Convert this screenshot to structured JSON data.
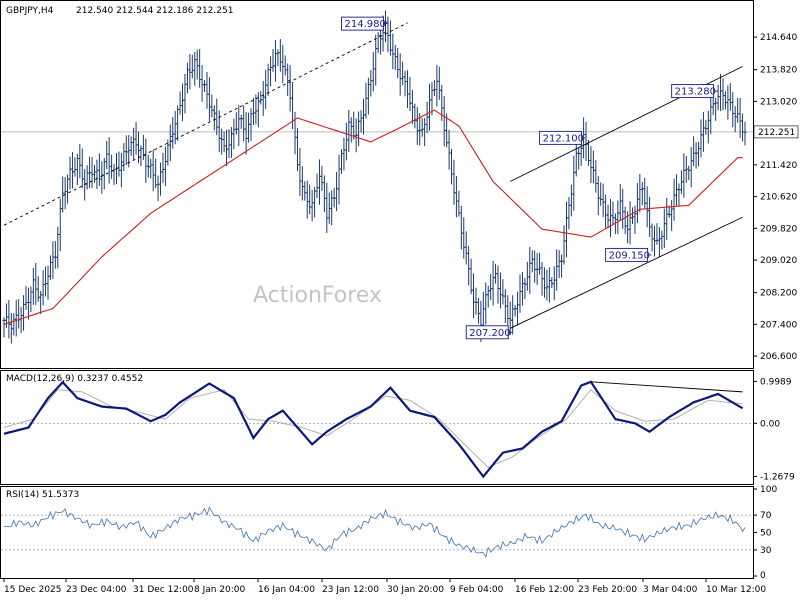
{
  "chart_data": [
    {
      "type": "candlestick",
      "pane": "price",
      "symbol": "GBPJPY,H4",
      "ohlc_readout": "212.540 212.544 212.186 212.251",
      "last_price": "212.251",
      "y_ticks": [
        "214.640",
        "213.820",
        "213.020",
        "212.200",
        "211.420",
        "210.620",
        "209.820",
        "209.020",
        "208.200",
        "207.400",
        "206.600"
      ],
      "ylim": [
        206.35,
        215.5
      ],
      "x_ticks": [
        "15 Dec 2025",
        "23 Dec 04:00",
        "31 Dec 12:00",
        "8 Jan 20:00",
        "16 Jan 04:00",
        "23 Jan 12:00",
        "30 Jan 20:00",
        "9 Feb 04:00",
        "16 Feb 12:00",
        "23 Feb 20:00",
        "3 Mar 04:00",
        "10 Mar 12:00"
      ],
      "close_trace": [
        [
          0,
          207.5
        ],
        [
          3,
          207.4
        ],
        [
          6,
          207.6
        ],
        [
          9,
          207.9
        ],
        [
          12,
          208.4
        ],
        [
          15,
          208.1
        ],
        [
          18,
          208.7
        ],
        [
          21,
          209.2
        ],
        [
          24,
          210.7
        ],
        [
          27,
          211.2
        ],
        [
          30,
          211.5
        ],
        [
          33,
          211.0
        ],
        [
          36,
          211.3
        ],
        [
          39,
          211.1
        ],
        [
          42,
          211.6
        ],
        [
          45,
          211.2
        ],
        [
          48,
          211.5
        ],
        [
          51,
          211.9
        ],
        [
          54,
          212.0
        ],
        [
          57,
          211.6
        ],
        [
          60,
          211.3
        ],
        [
          63,
          210.9
        ],
        [
          66,
          211.6
        ],
        [
          69,
          212.3
        ],
        [
          72,
          212.9
        ],
        [
          75,
          213.7
        ],
        [
          78,
          214.0
        ],
        [
          81,
          213.5
        ],
        [
          84,
          213.0
        ],
        [
          87,
          212.4
        ],
        [
          90,
          211.8
        ],
        [
          93,
          212.1
        ],
        [
          96,
          212.6
        ],
        [
          99,
          212.2
        ],
        [
          102,
          212.8
        ],
        [
          105,
          213.0
        ],
        [
          108,
          213.7
        ],
        [
          111,
          214.2
        ],
        [
          114,
          214.0
        ],
        [
          117,
          213.2
        ],
        [
          120,
          211.4
        ],
        [
          123,
          210.6
        ],
        [
          126,
          210.4
        ],
        [
          129,
          211.2
        ],
        [
          132,
          210.2
        ],
        [
          135,
          210.6
        ],
        [
          138,
          211.6
        ],
        [
          141,
          212.4
        ],
        [
          144,
          212.2
        ],
        [
          147,
          212.8
        ],
        [
          150,
          213.6
        ],
        [
          153,
          214.6
        ],
        [
          156,
          214.9
        ],
        [
          159,
          214.2
        ],
        [
          162,
          213.7
        ],
        [
          165,
          213.3
        ],
        [
          168,
          212.5
        ],
        [
          171,
          212.2
        ],
        [
          174,
          213.0
        ],
        [
          177,
          213.6
        ],
        [
          180,
          212.4
        ],
        [
          183,
          211.2
        ],
        [
          186,
          210.1
        ],
        [
          189,
          209.1
        ],
        [
          192,
          208.0
        ],
        [
          195,
          207.5
        ],
        [
          198,
          208.3
        ],
        [
          201,
          208.6
        ],
        [
          204,
          208.0
        ],
        [
          207,
          207.5
        ],
        [
          210,
          208.0
        ],
        [
          213,
          208.5
        ],
        [
          216,
          209.0
        ],
        [
          219,
          208.7
        ],
        [
          222,
          208.3
        ],
        [
          225,
          208.6
        ],
        [
          228,
          209.1
        ],
        [
          231,
          210.4
        ],
        [
          234,
          211.6
        ],
        [
          237,
          212.1
        ],
        [
          240,
          211.4
        ],
        [
          243,
          210.7
        ],
        [
          246,
          210.2
        ],
        [
          249,
          210.0
        ],
        [
          252,
          210.4
        ],
        [
          255,
          209.8
        ],
        [
          258,
          210.3
        ],
        [
          261,
          210.9
        ],
        [
          264,
          209.8
        ],
        [
          267,
          209.4
        ],
        [
          270,
          209.9
        ],
        [
          273,
          210.4
        ],
        [
          276,
          210.9
        ],
        [
          279,
          211.3
        ],
        [
          282,
          211.6
        ],
        [
          285,
          212.1
        ],
        [
          288,
          212.6
        ],
        [
          291,
          213.1
        ],
        [
          294,
          213.2
        ],
        [
          297,
          212.9
        ],
        [
          300,
          212.6
        ],
        [
          303,
          212.25
        ]
      ],
      "sma_trace": [
        [
          0,
          207.4
        ],
        [
          20,
          207.8
        ],
        [
          40,
          209.1
        ],
        [
          60,
          210.2
        ],
        [
          80,
          211.0
        ],
        [
          100,
          211.8
        ],
        [
          120,
          212.6
        ],
        [
          130,
          212.4
        ],
        [
          150,
          212.0
        ],
        [
          160,
          212.3
        ],
        [
          176,
          212.8
        ],
        [
          186,
          212.4
        ],
        [
          200,
          211.0
        ],
        [
          220,
          209.8
        ],
        [
          240,
          209.6
        ],
        [
          260,
          210.3
        ],
        [
          280,
          210.4
        ],
        [
          300,
          211.6
        ]
      ],
      "annotations": [
        {
          "label": "214.980",
          "i": 156,
          "price": 214.98
        },
        {
          "label": "212.100",
          "i": 237,
          "price": 212.1
        },
        {
          "label": "213.280",
          "i": 291,
          "price": 213.28
        },
        {
          "label": "209.150",
          "i": 264,
          "price": 209.15
        },
        {
          "label": "207.200",
          "i": 207,
          "price": 207.2
        }
      ],
      "trendlines": [
        {
          "style": "dashed",
          "from": {
            "i": 0,
            "price": 209.9
          },
          "to": {
            "i": 165,
            "price": 215.0
          }
        },
        {
          "style": "solid",
          "from": {
            "i": 207,
            "price": 207.3
          },
          "to": {
            "i": 302,
            "price": 210.1
          }
        },
        {
          "style": "solid",
          "from": {
            "i": 207,
            "price": 211.0
          },
          "to": {
            "i": 302,
            "price": 213.9
          }
        }
      ],
      "watermark": "ActionForex"
    },
    {
      "type": "line",
      "pane": "macd",
      "label": "MACD(12,26,9) 0.3237 0.4552",
      "y_ticks": [
        "0.9989",
        "0.00",
        "-1.2679"
      ],
      "ylim": [
        -1.4,
        1.2
      ],
      "macd_trace": [
        [
          0,
          -0.25
        ],
        [
          10,
          -0.1
        ],
        [
          18,
          0.6
        ],
        [
          24,
          0.98
        ],
        [
          30,
          0.6
        ],
        [
          40,
          0.4
        ],
        [
          50,
          0.35
        ],
        [
          60,
          0.05
        ],
        [
          66,
          0.2
        ],
        [
          72,
          0.5
        ],
        [
          84,
          0.95
        ],
        [
          94,
          0.6
        ],
        [
          102,
          -0.35
        ],
        [
          108,
          0.1
        ],
        [
          114,
          0.3
        ],
        [
          120,
          -0.1
        ],
        [
          126,
          -0.5
        ],
        [
          132,
          -0.2
        ],
        [
          140,
          0.1
        ],
        [
          150,
          0.4
        ],
        [
          158,
          0.85
        ],
        [
          166,
          0.3
        ],
        [
          176,
          0.15
        ],
        [
          186,
          -0.5
        ],
        [
          196,
          -1.27
        ],
        [
          204,
          -0.7
        ],
        [
          212,
          -0.6
        ],
        [
          220,
          -0.2
        ],
        [
          228,
          0.05
        ],
        [
          236,
          0.9
        ],
        [
          240,
          0.99
        ],
        [
          250,
          0.1
        ],
        [
          258,
          0.0
        ],
        [
          264,
          -0.2
        ],
        [
          272,
          0.15
        ],
        [
          282,
          0.5
        ],
        [
          292,
          0.7
        ],
        [
          303,
          0.3237
        ]
      ],
      "signal_trace": [
        [
          0,
          -0.1
        ],
        [
          12,
          0.1
        ],
        [
          22,
          0.8
        ],
        [
          32,
          0.75
        ],
        [
          44,
          0.4
        ],
        [
          56,
          0.25
        ],
        [
          66,
          0.1
        ],
        [
          76,
          0.6
        ],
        [
          90,
          0.8
        ],
        [
          100,
          0.1
        ],
        [
          110,
          0.05
        ],
        [
          122,
          -0.1
        ],
        [
          132,
          -0.3
        ],
        [
          144,
          0.15
        ],
        [
          156,
          0.65
        ],
        [
          166,
          0.55
        ],
        [
          178,
          0.1
        ],
        [
          190,
          -0.6
        ],
        [
          198,
          -1.05
        ],
        [
          208,
          -0.8
        ],
        [
          218,
          -0.35
        ],
        [
          230,
          0.1
        ],
        [
          240,
          0.8
        ],
        [
          250,
          0.3
        ],
        [
          262,
          0.05
        ],
        [
          274,
          0.1
        ],
        [
          288,
          0.55
        ],
        [
          303,
          0.4552
        ]
      ],
      "trendline": {
        "from": {
          "i": 240,
          "value": 0.99
        },
        "to": {
          "i": 302,
          "value": 0.75
        }
      }
    },
    {
      "type": "line",
      "pane": "rsi",
      "label": "RSI(14) 51.5373",
      "y_ticks": [
        "100",
        "70",
        "50",
        "30",
        "0"
      ],
      "ylim": [
        0,
        100
      ],
      "levels": [
        70,
        30
      ],
      "rsi_trace": [
        [
          0,
          55
        ],
        [
          6,
          62
        ],
        [
          12,
          58
        ],
        [
          18,
          68
        ],
        [
          24,
          75
        ],
        [
          30,
          66
        ],
        [
          36,
          58
        ],
        [
          42,
          63
        ],
        [
          48,
          56
        ],
        [
          54,
          62
        ],
        [
          60,
          45
        ],
        [
          66,
          55
        ],
        [
          72,
          66
        ],
        [
          78,
          70
        ],
        [
          84,
          76
        ],
        [
          90,
          62
        ],
        [
          96,
          54
        ],
        [
          102,
          40
        ],
        [
          108,
          52
        ],
        [
          114,
          58
        ],
        [
          120,
          48
        ],
        [
          126,
          40
        ],
        [
          132,
          30
        ],
        [
          138,
          48
        ],
        [
          144,
          54
        ],
        [
          150,
          66
        ],
        [
          156,
          72
        ],
        [
          162,
          62
        ],
        [
          168,
          55
        ],
        [
          174,
          60
        ],
        [
          180,
          45
        ],
        [
          186,
          35
        ],
        [
          190,
          32
        ],
        [
          196,
          25
        ],
        [
          202,
          34
        ],
        [
          208,
          38
        ],
        [
          214,
          46
        ],
        [
          220,
          40
        ],
        [
          226,
          52
        ],
        [
          232,
          62
        ],
        [
          238,
          70
        ],
        [
          244,
          58
        ],
        [
          250,
          55
        ],
        [
          256,
          48
        ],
        [
          262,
          42
        ],
        [
          268,
          50
        ],
        [
          274,
          56
        ],
        [
          280,
          58
        ],
        [
          286,
          66
        ],
        [
          292,
          70
        ],
        [
          298,
          64
        ],
        [
          303,
          51.5
        ]
      ]
    }
  ]
}
